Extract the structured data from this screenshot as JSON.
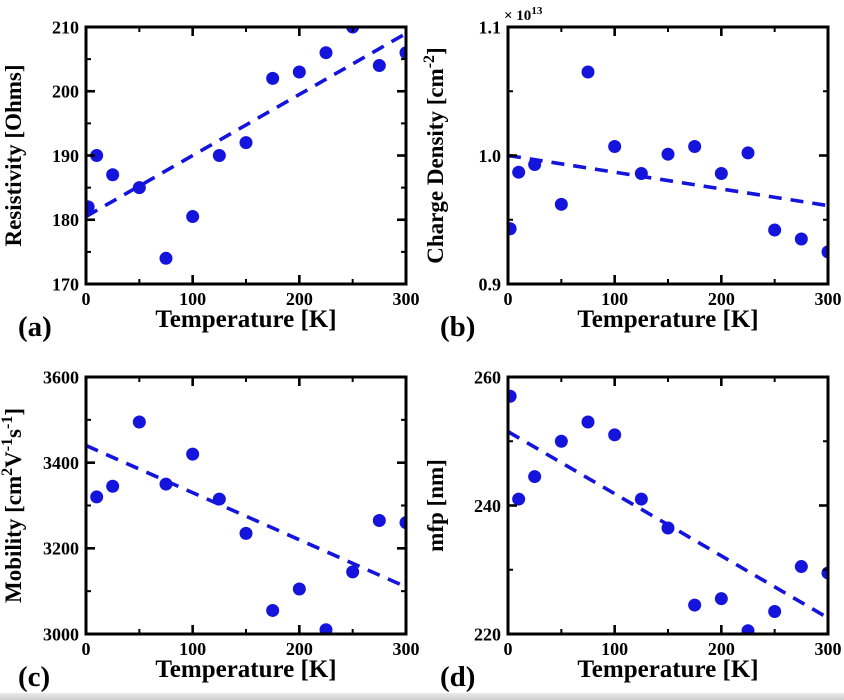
{
  "colors": {
    "data_blue": "#1414dd",
    "axis_black": "#000000",
    "background": "#ffffff",
    "page_edge_grey": "#d6d6d6"
  },
  "chart_data": [
    {
      "id": "a",
      "type": "scatter",
      "panel_label": "(a)",
      "title": "",
      "xlabel": "Temperature [K]",
      "ylabel": "Resistivity [Ohms]",
      "ylabel_parts": [
        {
          "t": "Resistivity [Ohms]"
        }
      ],
      "offset_parts": [],
      "xlim": [
        0,
        300
      ],
      "ylim": [
        170,
        210
      ],
      "x_major_ticks": [
        0,
        100,
        200,
        300
      ],
      "x_major_labels": [
        "0",
        "100",
        "200",
        "300"
      ],
      "x_minor_step": 50,
      "y_major_ticks": [
        170,
        180,
        190,
        200,
        210
      ],
      "y_major_labels": [
        "170",
        "180",
        "190",
        "200",
        "210"
      ],
      "y_minor_step": 5,
      "x": [
        2,
        10,
        25,
        50,
        75,
        100,
        125,
        150,
        175,
        200,
        225,
        250,
        275,
        300
      ],
      "y": [
        182,
        190,
        187,
        185,
        174,
        180.5,
        190,
        192,
        202,
        203,
        206,
        210,
        204,
        206
      ],
      "trend": {
        "style": "dashed",
        "x": [
          0,
          300
        ],
        "y": [
          180.5,
          209
        ]
      }
    },
    {
      "id": "b",
      "type": "scatter",
      "panel_label": "(b)",
      "title": "",
      "xlabel": "Temperature [K]",
      "ylabel": "Charge Density [cm-2]",
      "ylabel_parts": [
        {
          "t": "Charge Density [cm"
        },
        {
          "t": "-2",
          "sup": true
        },
        {
          "t": "]"
        }
      ],
      "offset_parts": [
        {
          "t": "× 10"
        },
        {
          "t": "13",
          "sup": true
        }
      ],
      "xlim": [
        0,
        300
      ],
      "ylim": [
        0.9,
        1.1
      ],
      "x_major_ticks": [
        0,
        100,
        200,
        300
      ],
      "x_major_labels": [
        "0",
        "100",
        "200",
        "300"
      ],
      "x_minor_step": 50,
      "y_major_ticks": [
        0.9,
        1.0,
        1.1
      ],
      "y_major_labels": [
        "0.9",
        "1.0",
        "1.1"
      ],
      "y_minor_step": 0.05,
      "x": [
        2,
        10,
        25,
        50,
        75,
        100,
        125,
        150,
        175,
        200,
        225,
        250,
        275,
        300
      ],
      "y": [
        0.943,
        0.987,
        0.993,
        0.962,
        1.065,
        1.007,
        0.986,
        1.001,
        1.007,
        0.986,
        1.002,
        0.942,
        0.935,
        0.925
      ],
      "trend": {
        "style": "dashed",
        "x": [
          0,
          300
        ],
        "y": [
          1.0,
          0.961
        ]
      }
    },
    {
      "id": "c",
      "type": "scatter",
      "panel_label": "(c)",
      "title": "",
      "xlabel": "Temperature [K]",
      "ylabel": "Mobility [cm2V-1s-1]",
      "ylabel_parts": [
        {
          "t": "Mobility [cm"
        },
        {
          "t": "2",
          "sup": true
        },
        {
          "t": "V"
        },
        {
          "t": "-1",
          "sup": true
        },
        {
          "t": "s"
        },
        {
          "t": "-1",
          "sup": true
        },
        {
          "t": "]"
        }
      ],
      "offset_parts": [],
      "xlim": [
        0,
        300
      ],
      "ylim": [
        3000,
        3600
      ],
      "x_major_ticks": [
        0,
        100,
        200,
        300
      ],
      "x_major_labels": [
        "0",
        "100",
        "200",
        "300"
      ],
      "x_minor_step": 50,
      "y_major_ticks": [
        3000,
        3200,
        3400,
        3600
      ],
      "y_major_labels": [
        "3000",
        "3200",
        "3400",
        "3600"
      ],
      "y_minor_step": 100,
      "x": [
        10,
        25,
        50,
        75,
        100,
        125,
        150,
        175,
        200,
        225,
        250,
        275,
        300
      ],
      "y": [
        3320,
        3345,
        3495,
        3350,
        3420,
        3315,
        3235,
        3055,
        3105,
        3010,
        3145,
        3265,
        3260
      ],
      "trend": {
        "style": "dashed",
        "x": [
          0,
          300
        ],
        "y": [
          3440,
          3110
        ]
      }
    },
    {
      "id": "d",
      "type": "scatter",
      "panel_label": "(d)",
      "title": "",
      "xlabel": "Temperature [K]",
      "ylabel": "mfp [nm]",
      "ylabel_parts": [
        {
          "t": "mfp [nm]"
        }
      ],
      "offset_parts": [],
      "xlim": [
        0,
        300
      ],
      "ylim": [
        220,
        260
      ],
      "x_major_ticks": [
        0,
        100,
        200,
        300
      ],
      "x_major_labels": [
        "0",
        "100",
        "200",
        "300"
      ],
      "x_minor_step": 50,
      "y_major_ticks": [
        220,
        240,
        260
      ],
      "y_major_labels": [
        "220",
        "240",
        "260"
      ],
      "y_minor_step": 10,
      "x": [
        2,
        10,
        25,
        50,
        75,
        100,
        125,
        150,
        175,
        200,
        225,
        250,
        275,
        300
      ],
      "y": [
        257,
        241,
        244.5,
        250,
        253,
        251,
        241,
        236.5,
        224.5,
        225.5,
        220.5,
        223.5,
        230.5,
        229.5
      ],
      "trend": {
        "style": "dashed",
        "x": [
          0,
          300
        ],
        "y": [
          251.5,
          222.5
        ]
      }
    }
  ]
}
